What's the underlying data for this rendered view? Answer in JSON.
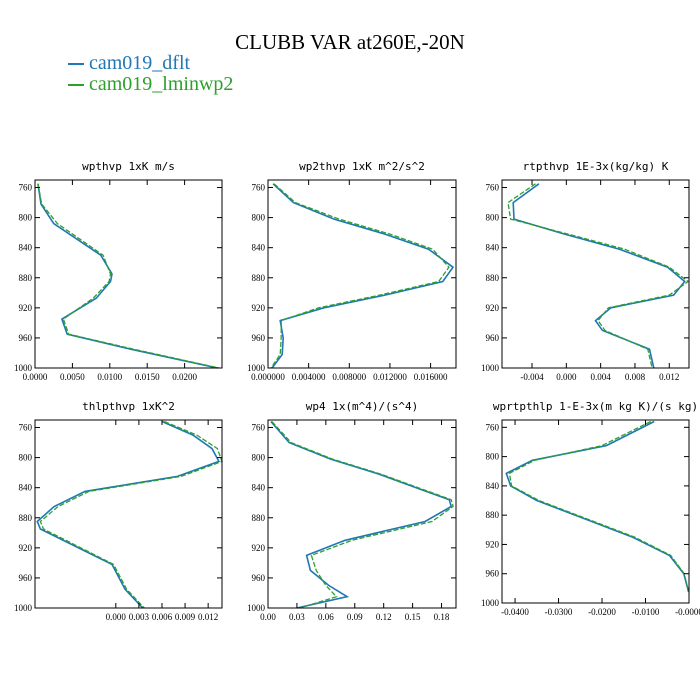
{
  "title": "CLUBB VAR at260E,-20N",
  "colors": {
    "dflt": "#1f77b4",
    "lminwp2": "#2ca02c"
  },
  "chart_data": [
    {
      "type": "line",
      "title": "wpthvp   1xK m/s",
      "xlim": [
        0,
        0.025
      ],
      "ylim": [
        1000,
        750
      ],
      "xticks": [
        0,
        0.005,
        0.01,
        0.015,
        0.02
      ],
      "xtick_labels": [
        "0.0000",
        "0.0050",
        "0.0100",
        "0.0150",
        "0.0200"
      ],
      "yticks": [
        760,
        800,
        840,
        880,
        920,
        960,
        1000
      ],
      "ytick_labels": [
        "760",
        "800",
        "840",
        "880",
        "920",
        "960",
        "1000"
      ],
      "series": [
        {
          "name": "cam019_dflt",
          "x": [
            0.0004,
            0.0008,
            0.0025,
            0.0088,
            0.0103,
            0.0101,
            0.0082,
            0.0036,
            0.0043,
            0.0128,
            0.0244
          ],
          "y": [
            755,
            782,
            808,
            850,
            875,
            885,
            907,
            935,
            955,
            975,
            1000
          ]
        },
        {
          "name": "cam019_lminwp2",
          "x": [
            0.0004,
            0.0009,
            0.003,
            0.0091,
            0.0101,
            0.0099,
            0.0078,
            0.0038,
            0.0045,
            0.0132,
            0.0246
          ],
          "y": [
            755,
            782,
            808,
            850,
            875,
            885,
            907,
            935,
            955,
            975,
            1000
          ]
        }
      ]
    },
    {
      "type": "line",
      "title": "wp2thvp   1xK m^2/s^2",
      "xlim": [
        0,
        0.0185
      ],
      "ylim": [
        1000,
        750
      ],
      "xticks": [
        0,
        0.004,
        0.008,
        0.012,
        0.016
      ],
      "xtick_labels": [
        "0.000000",
        "0.004000",
        "0.008000",
        "0.012000",
        "0.016000"
      ],
      "yticks": [
        760,
        800,
        840,
        880,
        920,
        960,
        1000
      ],
      "ytick_labels": [
        "760",
        "800",
        "840",
        "880",
        "920",
        "960",
        "1000"
      ],
      "series": [
        {
          "name": "cam019_dflt",
          "x": [
            0.0005,
            0.0025,
            0.0065,
            0.0115,
            0.0158,
            0.0182,
            0.0172,
            0.0115,
            0.0055,
            0.0012,
            0.0015,
            0.0014,
            0.0004
          ],
          "y": [
            755,
            780,
            802,
            822,
            842,
            866,
            885,
            903,
            920,
            937,
            960,
            982,
            1000
          ]
        },
        {
          "name": "cam019_lminwp2",
          "x": [
            0.0006,
            0.0027,
            0.007,
            0.012,
            0.0162,
            0.0178,
            0.0168,
            0.011,
            0.005,
            0.0013,
            0.0013,
            0.0012,
            0.0003
          ],
          "y": [
            755,
            780,
            802,
            822,
            842,
            866,
            885,
            903,
            920,
            937,
            960,
            982,
            1000
          ]
        }
      ]
    },
    {
      "type": "line",
      "title": "rtpthvp   1E-3x(kg/kg) K",
      "xlim": [
        -0.0075,
        0.0143
      ],
      "ylim": [
        1000,
        750
      ],
      "xticks": [
        -0.004,
        0,
        0.004,
        0.008,
        0.012
      ],
      "xtick_labels": [
        "-0.004",
        "0.000",
        "0.004",
        "0.008",
        "0.012"
      ],
      "yticks": [
        760,
        800,
        840,
        880,
        920,
        960,
        1000
      ],
      "ytick_labels": [
        "760",
        "800",
        "840",
        "880",
        "920",
        "960",
        "1000"
      ],
      "series": [
        {
          "name": "cam019_dflt",
          "x": [
            -0.0032,
            -0.0062,
            -0.0061,
            -0.0002,
            0.0062,
            0.0118,
            0.0138,
            0.0125,
            0.0052,
            0.0034,
            0.0042,
            0.0097,
            0.0102
          ],
          "y": [
            755,
            780,
            802,
            822,
            842,
            866,
            885,
            903,
            920,
            937,
            950,
            975,
            1000
          ]
        },
        {
          "name": "cam019_lminwp2",
          "x": [
            -0.0036,
            -0.0068,
            -0.0065,
            0.0002,
            0.0068,
            0.012,
            0.0142,
            0.012,
            0.0049,
            0.0037,
            0.0045,
            0.0095,
            0.01
          ],
          "y": [
            755,
            780,
            802,
            822,
            842,
            866,
            885,
            903,
            920,
            937,
            950,
            975,
            1000
          ]
        }
      ]
    },
    {
      "type": "line",
      "title": "thlpthvp   1xK^2",
      "xlim": [
        -0.0105,
        0.0138
      ],
      "ylim": [
        1000,
        750
      ],
      "xticks": [
        0,
        0.003,
        0.006,
        0.009,
        0.012
      ],
      "xtick_labels": [
        "0.000",
        "0.003",
        "0.006",
        "0.009",
        "0.012"
      ],
      "yticks": [
        760,
        800,
        840,
        880,
        920,
        960,
        1000
      ],
      "ytick_labels": [
        "760",
        "800",
        "840",
        "880",
        "920",
        "960",
        "1000"
      ],
      "series": [
        {
          "name": "cam019_dflt",
          "x": [
            0.006,
            0.01,
            0.0125,
            0.0134,
            0.008,
            -0.004,
            -0.008,
            -0.0102,
            -0.0098,
            -0.0005,
            0.0012,
            0.0035
          ],
          "y": [
            752,
            770,
            788,
            805,
            825,
            845,
            865,
            885,
            895,
            942,
            975,
            1000
          ]
        },
        {
          "name": "cam019_lminwp2",
          "x": [
            0.0063,
            0.0105,
            0.0132,
            0.0138,
            0.0085,
            -0.0035,
            -0.0075,
            -0.0098,
            -0.0094,
            -0.0003,
            0.0014,
            0.0037
          ],
          "y": [
            752,
            770,
            788,
            805,
            825,
            845,
            865,
            885,
            895,
            942,
            975,
            1000
          ]
        }
      ]
    },
    {
      "type": "line",
      "title": "wp4   1x(m^4)/(s^4)",
      "xlim": [
        0,
        0.195
      ],
      "ylim": [
        1000,
        750
      ],
      "xticks": [
        0,
        0.03,
        0.06,
        0.09,
        0.12,
        0.15,
        0.18
      ],
      "xtick_labels": [
        "0.00",
        "0.03",
        "0.06",
        "0.09",
        "0.12",
        "0.15",
        "0.18"
      ],
      "yticks": [
        760,
        800,
        840,
        880,
        920,
        960,
        1000
      ],
      "ytick_labels": [
        "760",
        "800",
        "840",
        "880",
        "920",
        "960",
        "1000"
      ],
      "series": [
        {
          "name": "cam019_dflt",
          "x": [
            0.003,
            0.022,
            0.065,
            0.115,
            0.158,
            0.188,
            0.19,
            0.163,
            0.08,
            0.04,
            0.044,
            0.063,
            0.082,
            0.03
          ],
          "y": [
            752,
            780,
            802,
            822,
            842,
            856,
            865,
            885,
            910,
            930,
            950,
            970,
            985,
            1000
          ]
        },
        {
          "name": "cam019_lminwp2",
          "x": [
            0.004,
            0.024,
            0.067,
            0.117,
            0.16,
            0.19,
            0.192,
            0.17,
            0.087,
            0.045,
            0.05,
            0.06,
            0.071,
            0.033
          ],
          "y": [
            752,
            780,
            802,
            822,
            842,
            856,
            865,
            885,
            910,
            930,
            950,
            970,
            985,
            1000
          ]
        }
      ]
    },
    {
      "type": "line",
      "title": "wprtpthlp   1-E-3x(m kg K)/(s kg)",
      "xlim": [
        -0.043,
        0
      ],
      "ylim": [
        1000,
        750
      ],
      "xticks": [
        -0.04,
        -0.03,
        -0.02,
        -0.01,
        0
      ],
      "xtick_labels": [
        "-0.0400",
        "-0.0300",
        "-0.0200",
        "-0.0100",
        "-0.0000"
      ],
      "yticks": [
        760,
        800,
        840,
        880,
        920,
        960,
        1000
      ],
      "ytick_labels": [
        "760",
        "800",
        "840",
        "880",
        "920",
        "960",
        "1000"
      ],
      "series": [
        {
          "name": "cam019_dflt",
          "x": [
            -0.008,
            -0.019,
            -0.036,
            -0.042,
            -0.041,
            -0.035,
            -0.024,
            -0.013,
            -0.0045,
            -0.0012,
            -0.0001
          ],
          "y": [
            752,
            785,
            805,
            823,
            840,
            860,
            885,
            910,
            935,
            960,
            985
          ]
        },
        {
          "name": "cam019_lminwp2",
          "x": [
            -0.0088,
            -0.02,
            -0.0355,
            -0.0413,
            -0.0408,
            -0.0345,
            -0.0235,
            -0.0125,
            -0.0042,
            -0.0011,
            -0.0001
          ],
          "y": [
            752,
            785,
            805,
            823,
            840,
            860,
            885,
            910,
            935,
            960,
            985
          ]
        }
      ]
    }
  ]
}
